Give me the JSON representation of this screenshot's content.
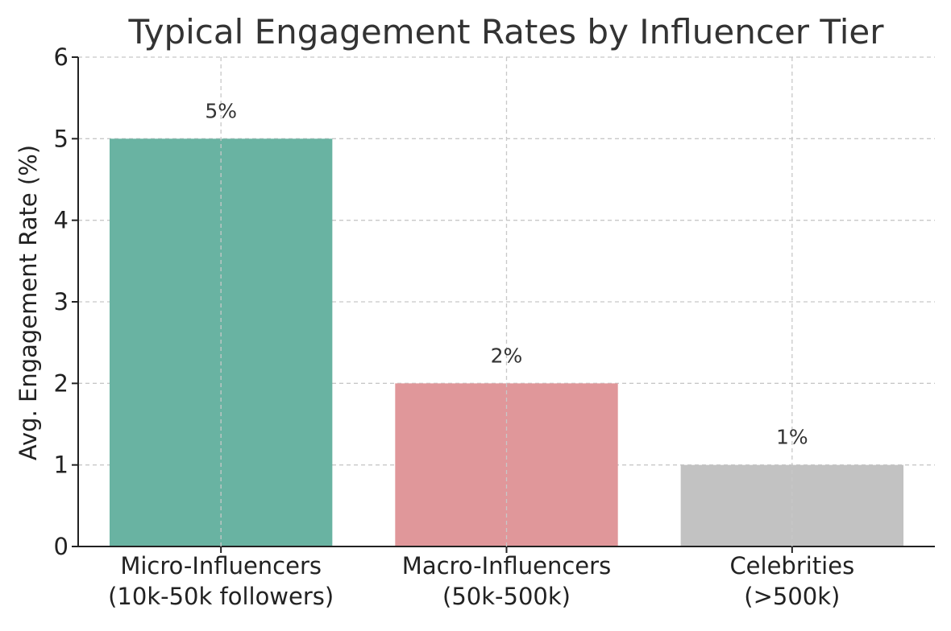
{
  "chart_data": {
    "type": "bar",
    "title": "Typical Engagement Rates by Influencer Tier",
    "xlabel": "",
    "ylabel": "Avg. Engagement Rate (%)",
    "categories": [
      [
        "Micro-Influencers",
        "(10k-50k followers)"
      ],
      [
        "Macro-Influencers",
        "(50k-500k)"
      ],
      [
        "Celebrities",
        "(>500k)"
      ]
    ],
    "values": [
      5,
      2,
      1
    ],
    "value_labels": [
      "5%",
      "2%",
      "1%"
    ],
    "colors": [
      "#69b3a2",
      "#e0979a",
      "#c2c2c2"
    ],
    "ylim": [
      0,
      6
    ],
    "yticks": [
      0,
      1,
      2,
      3,
      4,
      5,
      6
    ],
    "grid": true,
    "legend": "none"
  }
}
